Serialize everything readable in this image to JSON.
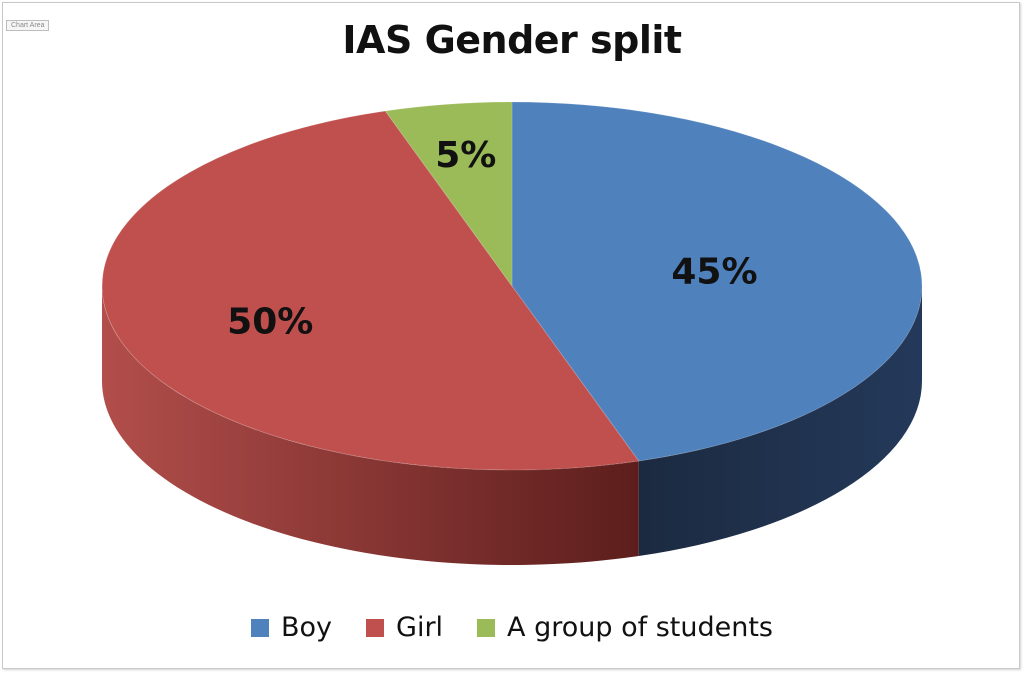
{
  "chart_area_tag": "Chart Area",
  "chart_data": {
    "type": "pie",
    "title": "IAS Gender split",
    "slices": [
      {
        "name": "Boy",
        "value": 45,
        "label": "45%",
        "color": "#4F81BD",
        "side_color": "#1F3048"
      },
      {
        "name": "Girl",
        "value": 50,
        "label": "50%",
        "color": "#C0504D",
        "side_color": "#7A2C2A"
      },
      {
        "name": "A group of students",
        "value": 5,
        "label": "5%",
        "color": "#9BBB59",
        "side_color": "#5E7436"
      }
    ],
    "legend_position": "bottom",
    "style": "3d"
  }
}
